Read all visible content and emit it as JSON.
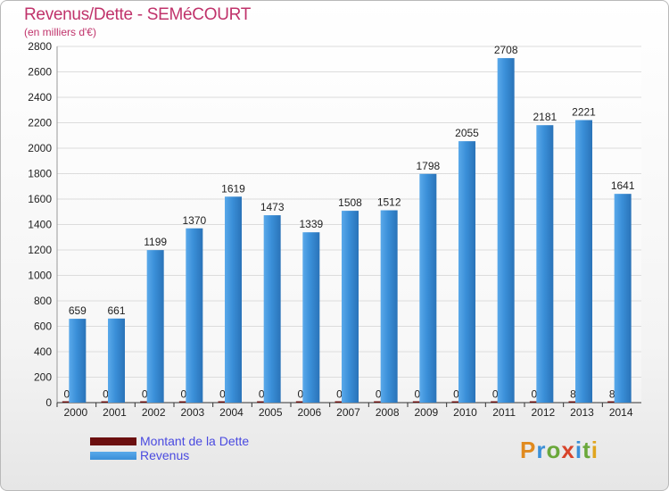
{
  "colors": {
    "revenus": "#3a8fd8",
    "dette": "#6b0f0f",
    "grid": "#dcdcdc",
    "title": "#c0336b",
    "legend_text": "#4a4ae0"
  },
  "chart_data": {
    "type": "bar",
    "title": "Revenus/Dette - SEMéCOURT",
    "subtitle": "(en milliers d'€)",
    "categories": [
      "2000",
      "2001",
      "2002",
      "2003",
      "2004",
      "2005",
      "2006",
      "2007",
      "2008",
      "2009",
      "2010",
      "2011",
      "2012",
      "2013",
      "2014"
    ],
    "series": [
      {
        "name": "Montant de la Dette",
        "values": [
          0,
          0,
          0,
          0,
          0,
          0,
          0,
          0,
          0,
          0,
          0,
          0,
          0,
          8,
          8
        ]
      },
      {
        "name": "Revenus",
        "values": [
          659,
          661,
          1199,
          1370,
          1619,
          1473,
          1339,
          1508,
          1512,
          1798,
          2055,
          2708,
          2181,
          2221,
          1641
        ]
      }
    ],
    "yticks": [
      0,
      200,
      400,
      600,
      800,
      1000,
      1200,
      1400,
      1600,
      1800,
      2000,
      2200,
      2400,
      2600,
      2800
    ],
    "ylim": [
      0,
      2800
    ],
    "grid": true,
    "legend_position": "bottom-left"
  },
  "legend": [
    {
      "label": "Montant de la Dette",
      "color": "#6b0f0f"
    },
    {
      "label": "Revenus",
      "color": "#3a8fd8"
    }
  ],
  "logo": {
    "text": "Proxiti"
  }
}
